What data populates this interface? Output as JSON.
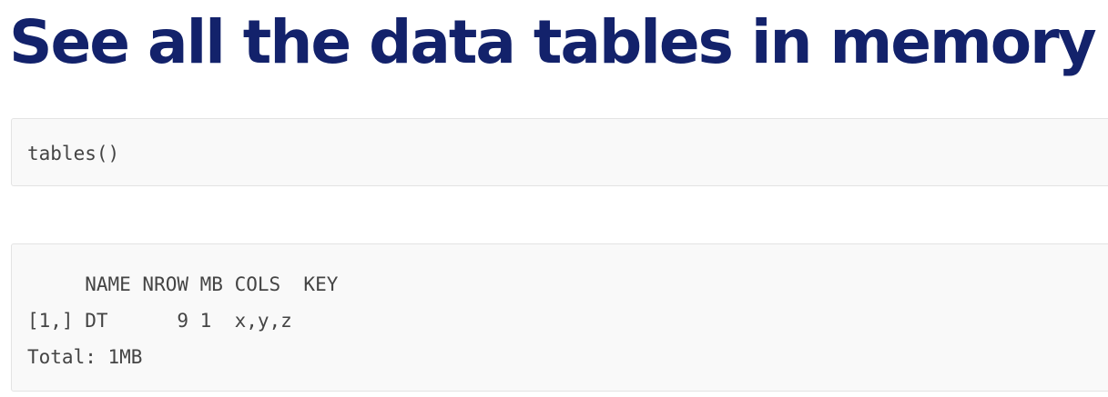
{
  "slide": {
    "title": "See all the data tables in memory"
  },
  "code_input": {
    "text": "tables()"
  },
  "code_output": {
    "header": "     NAME NROW MB COLS  KEY",
    "row": "[1,] DT      9 1  x,y,z",
    "total": "Total: 1MB"
  }
}
